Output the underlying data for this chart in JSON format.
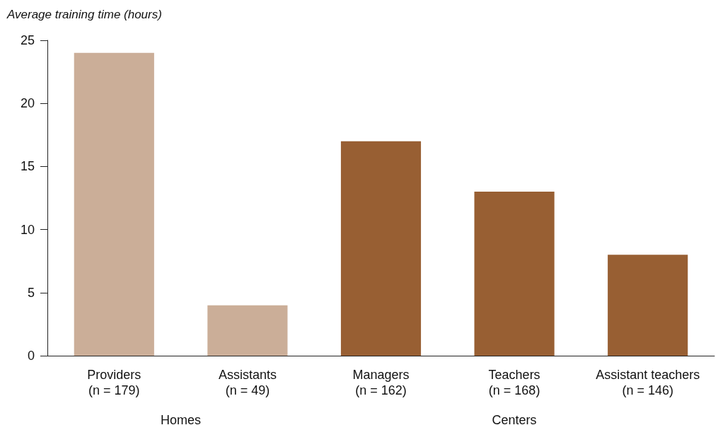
{
  "chart_data": {
    "type": "bar",
    "ylabel": "Average training time (hours)",
    "categories": [
      "Providers\n(n = 179)",
      "Assistants\n(n = 49)",
      "Managers\n(n = 162)",
      "Teachers\n(n = 168)",
      "Assistant teachers\n(n = 146)"
    ],
    "values": [
      24,
      4,
      17,
      13,
      8
    ],
    "colors": [
      "#cbae98",
      "#cbae98",
      "#985f33",
      "#985f33",
      "#985f33"
    ],
    "annotations": [
      "Homes",
      "Centers"
    ],
    "ylim": [
      0,
      25
    ],
    "yticks": [
      0,
      5,
      10,
      15,
      20,
      25
    ],
    "grid": false
  }
}
